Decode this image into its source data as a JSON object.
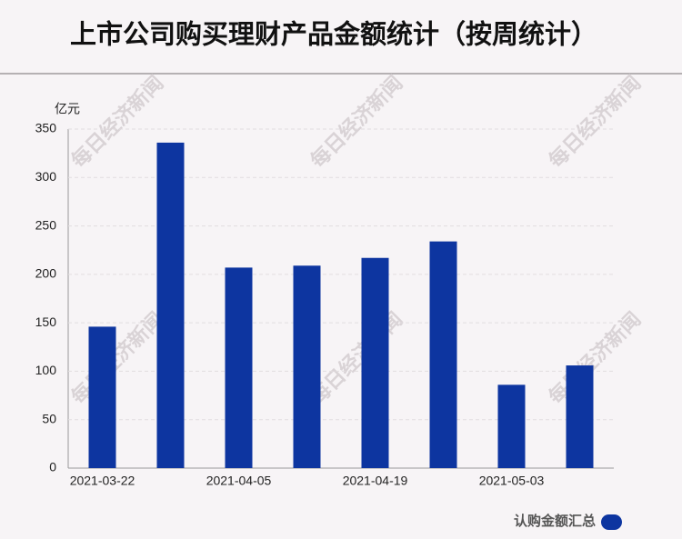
{
  "chart_data": {
    "type": "bar",
    "title": "上市公司购买理财产品金额统计（按周统计）",
    "y_unit": "亿元",
    "categories": [
      "2021-03-22",
      null,
      "2021-04-05",
      null,
      "2021-04-19",
      null,
      "2021-05-03",
      null
    ],
    "series": [
      {
        "name": "认购金额汇总",
        "color": "#0d35a0",
        "values": [
          146,
          336,
          207,
          209,
          217,
          234,
          86,
          106
        ]
      }
    ],
    "ylim": [
      0,
      350
    ],
    "yticks": [
      0,
      50,
      100,
      150,
      200,
      250,
      300,
      350
    ],
    "grid": true,
    "watermark": "每日经济新闻"
  }
}
